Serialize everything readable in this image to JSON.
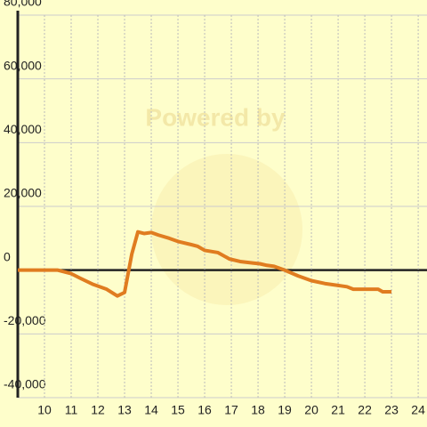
{
  "chart_data": {
    "type": "line",
    "watermark": "Powered by",
    "x": [
      9,
      10.5,
      11,
      11.33,
      11.83,
      12.33,
      12.73,
      13,
      13.27,
      13.5,
      13.73,
      14,
      14.27,
      14.67,
      15,
      15.5,
      15.73,
      16,
      16.5,
      16.93,
      17.33,
      17.83,
      18.07,
      18.33,
      18.6,
      19,
      19.5,
      20,
      20.5,
      21,
      21.33,
      21.57,
      22.5,
      22.67,
      23
    ],
    "series": [
      {
        "color": "#e07c20",
        "values": [
          0,
          0,
          -1100,
          -2500,
          -4500,
          -6000,
          -8100,
          -7000,
          5000,
          12000,
          11500,
          11800,
          11000,
          10000,
          9000,
          8000,
          7500,
          6200,
          5500,
          3500,
          2700,
          2200,
          2000,
          1500,
          1200,
          0,
          -1800,
          -3300,
          -4200,
          -4800,
          -5200,
          -6000,
          -6000,
          -6800,
          -6800
        ]
      }
    ],
    "xlim": [
      9,
      24.33
    ],
    "xticks": [
      10,
      11,
      12,
      13,
      14,
      15,
      16,
      17,
      18,
      19,
      20,
      21,
      22,
      23,
      24
    ],
    "ylim": [
      -40000,
      80000
    ],
    "yticks": [
      {
        "value": -40000,
        "label": "-40,000"
      },
      {
        "value": -20000,
        "label": "-20,000"
      },
      0,
      {
        "value": 20000,
        "label": "20,000"
      },
      {
        "value": 40000,
        "label": "40,000"
      },
      {
        "value": 60000,
        "label": "60,000"
      },
      {
        "value": 80000,
        "label": "80,000"
      }
    ],
    "grid": true
  }
}
